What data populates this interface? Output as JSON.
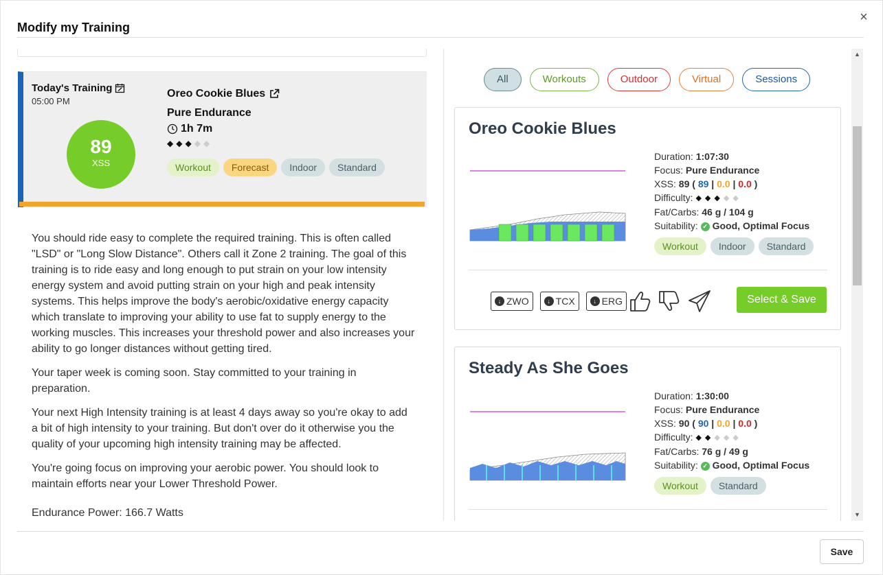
{
  "modal": {
    "title": "Modify my Training",
    "close_glyph": "×",
    "save_label": "Save"
  },
  "today": {
    "label": "Today's Training",
    "time": "05:00 PM",
    "xss_value": "89",
    "xss_label": "XSS",
    "workout_name": "Oreo Cookie Blues",
    "focus": "Pure Endurance",
    "duration": "1h 7m",
    "difficulty_filled": 3,
    "difficulty_total": 5,
    "tags": [
      "Workout",
      "Forecast",
      "Indoor",
      "Standard"
    ],
    "accent_color": "#1d63b5",
    "bar_color": "#f0a52d"
  },
  "description": {
    "paragraphs": [
      "You should ride easy to complete the required training. This is often called \"LSD\" or \"Long Slow Distance\". Others call it Zone 2 training. The goal of this training is to ride easy and long enough to put strain on your low intensity energy system and avoid putting strain on your high and peak intensity systems. This helps improve the body's aerobic/oxidative energy capacity which translate to improving your ability to use fat to supply energy to the working muscles. This increases your threshold power and also increases your ability to go longer distances without getting tired.",
      "Your taper week is coming soon. Stay committed to your training in preparation.",
      "Your next High Intensity training is at least 4 days away so you're okay to add a bit of high intensity to your training. But don't over do it otherwise you the quality of your upcoming high intensity training may be affected.",
      "You're going focus on improving your aerobic power. You should look to maintain efforts near your Lower Threshold Power."
    ],
    "power_line": "Endurance Power: 166.7 Watts"
  },
  "filters": [
    "All",
    "Workouts",
    "Outdoor",
    "Virtual",
    "Sessions"
  ],
  "cards": [
    {
      "title": "Oreo Cookie Blues",
      "duration_label": "Duration:",
      "duration": "1:07:30",
      "focus_label": "Focus:",
      "focus": "Pure Endurance",
      "xss_label": "XSS:",
      "xss_total": "89",
      "xss_low": "89",
      "xss_high": "0.0",
      "xss_peak": "0.0",
      "difficulty_label": "Difficulty:",
      "difficulty_filled": 3,
      "fatcarbs_label": "Fat/Carbs:",
      "fatcarbs": "46 g / 104 g",
      "suitability_label": "Suitability:",
      "suitability": "Good, Optimal Focus",
      "tags": [
        "Workout",
        "Indoor",
        "Standard"
      ],
      "downloads": [
        "ZWO",
        "TCX",
        "ERG"
      ],
      "select_label": "Select & Save"
    },
    {
      "title": "Steady As She Goes",
      "duration_label": "Duration:",
      "duration": "1:30:00",
      "focus_label": "Focus:",
      "focus": "Pure Endurance",
      "xss_label": "XSS:",
      "xss_total": "90",
      "xss_low": "90",
      "xss_high": "0.0",
      "xss_peak": "0.0",
      "difficulty_label": "Difficulty:",
      "difficulty_filled": 2,
      "fatcarbs_label": "Fat/Carbs:",
      "fatcarbs": "76 g / 49 g",
      "suitability_label": "Suitability:",
      "suitability": "Good, Optimal Focus",
      "tags": [
        "Workout",
        "Standard"
      ]
    }
  ],
  "colors": {
    "brand_green": "#76cd2a",
    "xss_blue": "#2167b4",
    "xss_orange": "#f0a52d",
    "xss_red": "#d42626"
  }
}
